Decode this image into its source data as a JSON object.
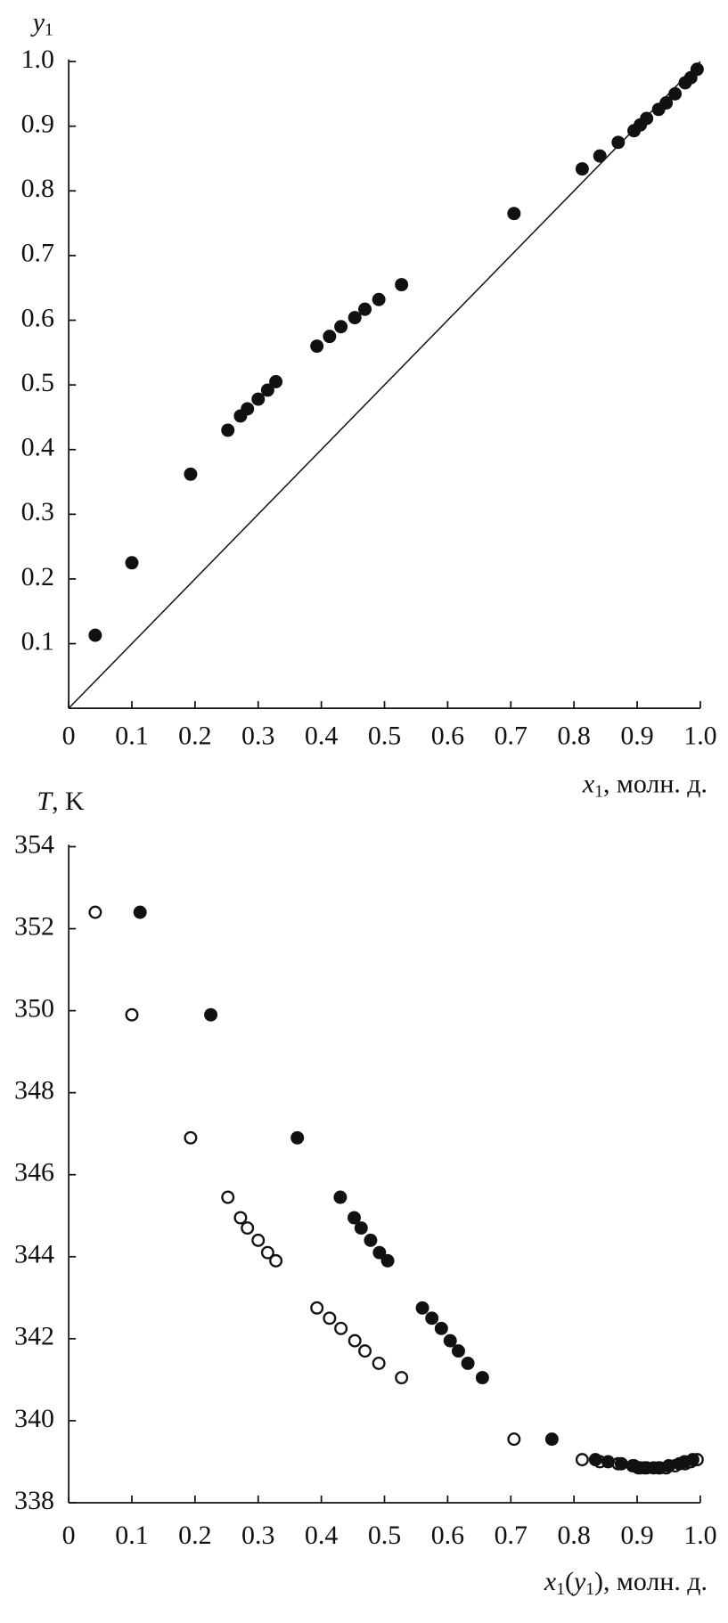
{
  "chart_data": [
    {
      "type": "scatter",
      "y_label": [
        {
          "text": "y",
          "italic": true
        },
        {
          "text": "1",
          "sub": true
        }
      ],
      "x_label": [
        {
          "text": "x",
          "italic": true
        },
        {
          "text": "1",
          "sub": true
        },
        {
          "text": ", молн. д."
        }
      ],
      "xlim": [
        0,
        1
      ],
      "ylim": [
        0,
        1
      ],
      "xticks": [
        0,
        0.1,
        0.2,
        0.3,
        0.4,
        0.5,
        0.6,
        0.7,
        0.8,
        0.9,
        {
          "value": 1,
          "label": "1.0"
        }
      ],
      "yticks": [
        0.1,
        0.2,
        0.3,
        0.4,
        0.5,
        0.6,
        0.7,
        0.8,
        0.9,
        {
          "value": 1,
          "label": "1.0"
        }
      ],
      "diagonal": true,
      "series": [
        {
          "color": "#111111",
          "filled": true,
          "x": [
            0.042,
            0.1,
            0.193,
            0.252,
            0.272,
            0.283,
            0.3,
            0.315,
            0.328,
            0.393,
            0.413,
            0.431,
            0.453,
            0.469,
            0.491,
            0.527,
            0.705,
            0.813,
            0.841,
            0.87,
            0.895,
            0.905,
            0.915,
            0.934,
            0.946,
            0.96,
            0.976,
            0.985,
            0.995
          ],
          "values": [
            0.113,
            0.225,
            0.362,
            0.43,
            0.452,
            0.463,
            0.478,
            0.492,
            0.505,
            0.56,
            0.575,
            0.59,
            0.604,
            0.617,
            0.632,
            0.655,
            0.765,
            0.834,
            0.854,
            0.875,
            0.893,
            0.902,
            0.912,
            0.926,
            0.936,
            0.95,
            0.967,
            0.975,
            0.988
          ]
        }
      ]
    },
    {
      "type": "scatter",
      "y_label": [
        {
          "text": "T",
          "italic": true
        },
        {
          "text": ", K"
        }
      ],
      "x_label": [
        {
          "text": "x",
          "italic": true
        },
        {
          "text": "1",
          "sub": true
        },
        {
          "text": "("
        },
        {
          "text": "y",
          "italic": true
        },
        {
          "text": "1",
          "sub": true
        },
        {
          "text": "), молн. д."
        }
      ],
      "xlim": [
        0,
        1
      ],
      "ylim": [
        338,
        354
      ],
      "xticks": [
        0,
        0.1,
        0.2,
        0.3,
        0.4,
        0.5,
        0.6,
        0.7,
        0.8,
        0.9,
        {
          "value": 1,
          "label": "1.0"
        }
      ],
      "yticks": [
        338,
        340,
        342,
        344,
        346,
        348,
        350,
        352,
        354
      ],
      "diagonal": false,
      "series": [
        {
          "color": "#111111",
          "filled": false,
          "x": [
            0.042,
            0.1,
            0.193,
            0.252,
            0.272,
            0.283,
            0.3,
            0.315,
            0.328,
            0.393,
            0.413,
            0.431,
            0.453,
            0.469,
            0.491,
            0.527,
            0.705,
            0.813,
            0.841,
            0.87,
            0.895,
            0.905,
            0.915,
            0.934,
            0.946,
            0.96,
            0.976,
            0.985,
            0.995
          ],
          "values": [
            352.4,
            349.9,
            346.9,
            345.45,
            344.95,
            344.7,
            344.4,
            344.1,
            343.9,
            342.75,
            342.5,
            342.25,
            341.95,
            341.7,
            341.4,
            341.05,
            339.55,
            339.05,
            339.0,
            338.95,
            338.9,
            338.85,
            338.85,
            338.85,
            338.85,
            338.9,
            338.95,
            339.0,
            339.05
          ]
        },
        {
          "color": "#111111",
          "filled": true,
          "x": [
            0.113,
            0.225,
            0.362,
            0.43,
            0.452,
            0.463,
            0.478,
            0.492,
            0.505,
            0.56,
            0.575,
            0.59,
            0.604,
            0.617,
            0.632,
            0.655,
            0.765,
            0.834,
            0.854,
            0.875,
            0.893,
            0.902,
            0.912,
            0.926,
            0.936,
            0.95,
            0.967,
            0.975,
            0.988
          ],
          "values": [
            352.4,
            349.9,
            346.9,
            345.45,
            344.95,
            344.7,
            344.4,
            344.1,
            343.9,
            342.75,
            342.5,
            342.25,
            341.95,
            341.7,
            341.4,
            341.05,
            339.55,
            339.05,
            339.0,
            338.95,
            338.9,
            338.85,
            338.85,
            338.85,
            338.85,
            338.9,
            338.95,
            339.0,
            339.05
          ]
        }
      ]
    }
  ]
}
